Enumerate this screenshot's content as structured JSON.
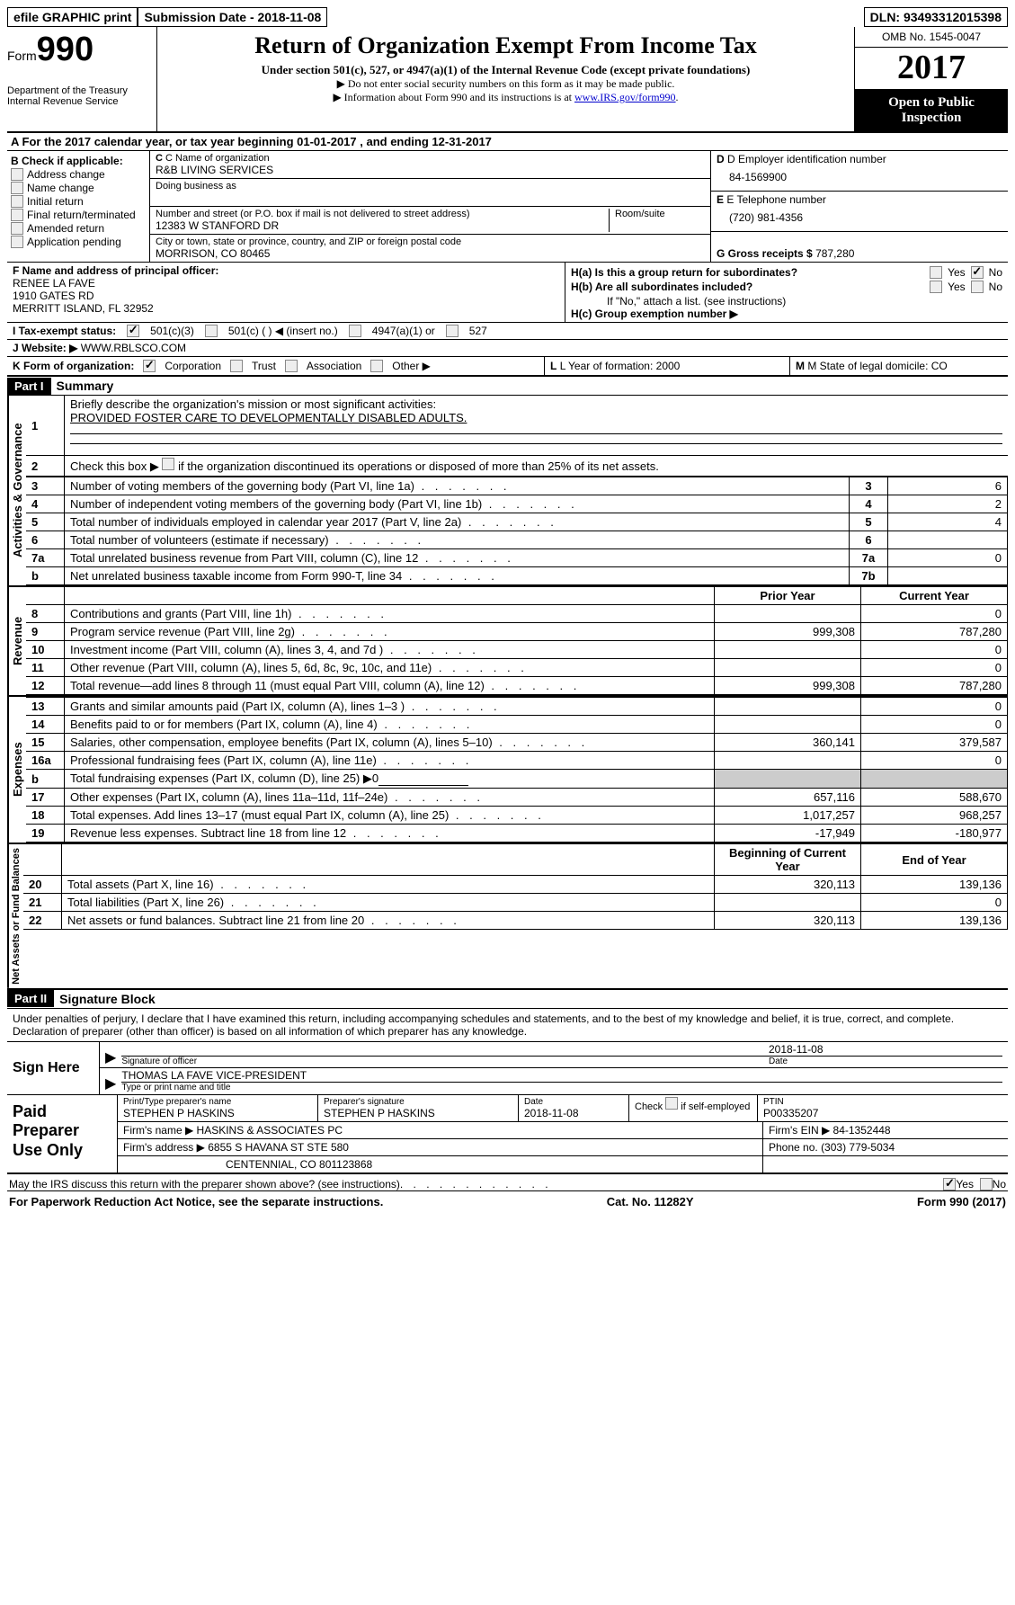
{
  "top": {
    "efile": "efile GRAPHIC print",
    "submission": "Submission Date - 2018-11-08",
    "dln": "DLN: 93493312015398"
  },
  "header": {
    "form_label": "Form",
    "form_num": "990",
    "dept": "Department of the Treasury",
    "irs": "Internal Revenue Service",
    "title": "Return of Organization Exempt From Income Tax",
    "sub1": "Under section 501(c), 527, or 4947(a)(1) of the Internal Revenue Code (except private foundations)",
    "sub2": "▶ Do not enter social security numbers on this form as it may be made public.",
    "sub3_a": "▶ Information about Form 990 and its instructions is at ",
    "sub3_link": "www.IRS.gov/form990",
    "omb": "OMB No. 1545-0047",
    "year": "2017",
    "open": "Open to Public Inspection"
  },
  "row_a": "A  For the 2017 calendar year, or tax year beginning 01-01-2017   , and ending 12-31-2017",
  "b": {
    "title": "B Check if applicable:",
    "opts": [
      "Address change",
      "Name change",
      "Initial return",
      "Final return/terminated",
      "Amended return",
      "Application pending"
    ]
  },
  "c": {
    "label": "C Name of organization",
    "name": "R&B LIVING SERVICES",
    "dba_label": "Doing business as",
    "addr_label": "Number and street (or P.O. box if mail is not delivered to street address)",
    "room_label": "Room/suite",
    "addr": "12383 W STANFORD DR",
    "city_label": "City or town, state or province, country, and ZIP or foreign postal code",
    "city": "MORRISON, CO  80465"
  },
  "d": {
    "label": "D Employer identification number",
    "val": "84-1569900"
  },
  "e": {
    "label": "E Telephone number",
    "val": "(720) 981-4356"
  },
  "g": {
    "label": "G Gross receipts $",
    "val": "787,280"
  },
  "f": {
    "label": "F  Name and address of principal officer:",
    "l1": "RENEE LA FAVE",
    "l2": "1910 GATES RD",
    "l3": "MERRITT ISLAND, FL  32952"
  },
  "h": {
    "a": "H(a)  Is this a group return for subordinates?",
    "b": "H(b)  Are all subordinates included?",
    "note": "If \"No,\" attach a list. (see instructions)",
    "c": "H(c)  Group exemption number ▶",
    "yes": "Yes",
    "no": "No"
  },
  "i": {
    "label": "I   Tax-exempt status:",
    "o1": "501(c)(3)",
    "o2": "501(c) (  ) ◀ (insert no.)",
    "o3": "4947(a)(1) or",
    "o4": "527"
  },
  "j": {
    "label": "J  Website: ▶",
    "val": "WWW.RBLSCO.COM"
  },
  "k": {
    "label": "K Form of organization:",
    "o1": "Corporation",
    "o2": "Trust",
    "o3": "Association",
    "o4": "Other ▶",
    "l": "L Year of formation: 2000",
    "m": "M State of legal domicile: CO"
  },
  "part1": {
    "header": "Part I",
    "title": "Summary",
    "side_ag": "Activities & Governance",
    "side_rev": "Revenue",
    "side_exp": "Expenses",
    "side_na": "Net Assets or Fund Balances",
    "l1": "Briefly describe the organization's mission or most significant activities:",
    "l1v": "PROVIDED FOSTER CARE TO DEVELOPMENTALLY DISABLED ADULTS.",
    "l2": "Check this box ▶        if the organization discontinued its operations or disposed of more than 25% of its net assets.",
    "lines_ag": [
      {
        "n": "3",
        "d": "Number of voting members of the governing body (Part VI, line 1a)",
        "box": "3",
        "v": "6"
      },
      {
        "n": "4",
        "d": "Number of independent voting members of the governing body (Part VI, line 1b)",
        "box": "4",
        "v": "2"
      },
      {
        "n": "5",
        "d": "Total number of individuals employed in calendar year 2017 (Part V, line 2a)",
        "box": "5",
        "v": "4"
      },
      {
        "n": "6",
        "d": "Total number of volunteers (estimate if necessary)",
        "box": "6",
        "v": ""
      },
      {
        "n": "7a",
        "d": "Total unrelated business revenue from Part VIII, column (C), line 12",
        "box": "7a",
        "v": "0"
      },
      {
        "n": "b",
        "d": "Net unrelated business taxable income from Form 990-T, line 34",
        "box": "7b",
        "v": ""
      }
    ],
    "col_prior": "Prior Year",
    "col_curr": "Current Year",
    "rev": [
      {
        "n": "8",
        "d": "Contributions and grants (Part VIII, line 1h)",
        "p": "",
        "c": "0"
      },
      {
        "n": "9",
        "d": "Program service revenue (Part VIII, line 2g)",
        "p": "999,308",
        "c": "787,280"
      },
      {
        "n": "10",
        "d": "Investment income (Part VIII, column (A), lines 3, 4, and 7d )",
        "p": "",
        "c": "0"
      },
      {
        "n": "11",
        "d": "Other revenue (Part VIII, column (A), lines 5, 6d, 8c, 9c, 10c, and 11e)",
        "p": "",
        "c": "0"
      },
      {
        "n": "12",
        "d": "Total revenue—add lines 8 through 11 (must equal Part VIII, column (A), line 12)",
        "p": "999,308",
        "c": "787,280"
      }
    ],
    "exp": [
      {
        "n": "13",
        "d": "Grants and similar amounts paid (Part IX, column (A), lines 1–3 )",
        "p": "",
        "c": "0"
      },
      {
        "n": "14",
        "d": "Benefits paid to or for members (Part IX, column (A), line 4)",
        "p": "",
        "c": "0"
      },
      {
        "n": "15",
        "d": "Salaries, other compensation, employee benefits (Part IX, column (A), lines 5–10)",
        "p": "360,141",
        "c": "379,587"
      },
      {
        "n": "16a",
        "d": "Professional fundraising fees (Part IX, column (A), line 11e)",
        "p": "",
        "c": "0"
      },
      {
        "n": "b",
        "d": "Total fundraising expenses (Part IX, column (D), line 25) ▶0",
        "p": "gray",
        "c": "gray"
      },
      {
        "n": "17",
        "d": "Other expenses (Part IX, column (A), lines 11a–11d, 11f–24e)",
        "p": "657,116",
        "c": "588,670"
      },
      {
        "n": "18",
        "d": "Total expenses. Add lines 13–17 (must equal Part IX, column (A), line 25)",
        "p": "1,017,257",
        "c": "968,257"
      },
      {
        "n": "19",
        "d": "Revenue less expenses. Subtract line 18 from line 12",
        "p": "-17,949",
        "c": "-180,977"
      }
    ],
    "col_beg": "Beginning of Current Year",
    "col_end": "End of Year",
    "na": [
      {
        "n": "20",
        "d": "Total assets (Part X, line 16)",
        "p": "320,113",
        "c": "139,136"
      },
      {
        "n": "21",
        "d": "Total liabilities (Part X, line 26)",
        "p": "",
        "c": "0"
      },
      {
        "n": "22",
        "d": "Net assets or fund balances. Subtract line 21 from line 20",
        "p": "320,113",
        "c": "139,136"
      }
    ]
  },
  "part2": {
    "header": "Part II",
    "title": "Signature Block",
    "perjury": "Under penalties of perjury, I declare that I have examined this return, including accompanying schedules and statements, and to the best of my knowledge and belief, it is true, correct, and complete. Declaration of preparer (other than officer) is based on all information of which preparer has any knowledge.",
    "sign_here": "Sign Here",
    "sig_of": "Signature of officer",
    "sig_date": "2018-11-08",
    "date_l": "Date",
    "name_title": "THOMAS LA FAVE VICE-PRESIDENT",
    "type_l": "Type or print name and title",
    "paid": "Paid Preparer Use Only",
    "p_name_l": "Print/Type preparer's name",
    "p_name": "STEPHEN P HASKINS",
    "p_sig_l": "Preparer's signature",
    "p_sig": "STEPHEN P HASKINS",
    "p_date_l": "Date",
    "p_date": "2018-11-08",
    "p_check": "Check          if self-employed",
    "ptin_l": "PTIN",
    "ptin": "P00335207",
    "firm_l": "Firm's name     ▶",
    "firm": "HASKINS & ASSOCIATES PC",
    "fein_l": "Firm's EIN ▶",
    "fein": "84-1352448",
    "faddr_l": "Firm's address ▶",
    "faddr": "6855 S HAVANA ST STE 580",
    "faddr2": "CENTENNIAL, CO  801123868",
    "phone_l": "Phone no.",
    "phone": "(303) 779-5034"
  },
  "footer": {
    "q": "May the IRS discuss this return with the preparer shown above? (see instructions)",
    "yes": "Yes",
    "no": "No",
    "pra": "For Paperwork Reduction Act Notice, see the separate instructions.",
    "cat": "Cat. No. 11282Y",
    "form": "Form 990 (2017)"
  }
}
